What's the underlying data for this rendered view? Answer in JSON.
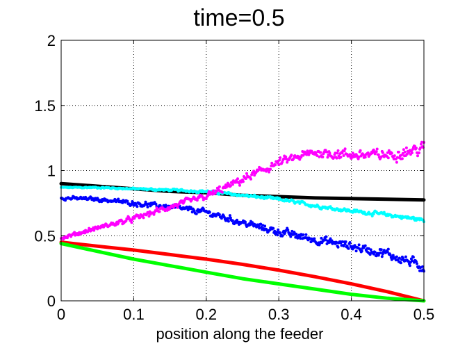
{
  "chart_data": {
    "type": "scatter",
    "title": "time=0.5",
    "xlabel": "position along the feeder",
    "ylabel": "",
    "xlim": [
      0,
      0.5
    ],
    "ylim": [
      0,
      2
    ],
    "x_ticks": [
      "0",
      "0.1",
      "0.2",
      "0.3",
      "0.4",
      "0.5"
    ],
    "y_ticks": [
      "0",
      "0.5",
      "1",
      "1.5",
      "2"
    ],
    "grid": true,
    "grid_style": "dotted",
    "series": [
      {
        "color": "#000000",
        "marker": "thick-line",
        "x": [
          0,
          0.05,
          0.1,
          0.15,
          0.2,
          0.25,
          0.3,
          0.35,
          0.4,
          0.45,
          0.5
        ],
        "y": [
          0.9,
          0.88,
          0.86,
          0.84,
          0.83,
          0.81,
          0.8,
          0.79,
          0.785,
          0.78,
          0.775
        ]
      },
      {
        "color": "#00ffff",
        "marker": "dots",
        "x": [
          0,
          0.05,
          0.1,
          0.15,
          0.2,
          0.25,
          0.3,
          0.35,
          0.4,
          0.45,
          0.5
        ],
        "y": [
          0.87,
          0.87,
          0.86,
          0.85,
          0.84,
          0.81,
          0.78,
          0.73,
          0.69,
          0.66,
          0.62
        ]
      },
      {
        "color": "#0000ff",
        "marker": "dots",
        "x": [
          0,
          0.05,
          0.1,
          0.15,
          0.2,
          0.25,
          0.3,
          0.35,
          0.4,
          0.45,
          0.5
        ],
        "y": [
          0.79,
          0.78,
          0.75,
          0.72,
          0.68,
          0.6,
          0.53,
          0.47,
          0.42,
          0.36,
          0.26
        ]
      },
      {
        "color": "#ff00ff",
        "marker": "dots",
        "x": [
          0,
          0.05,
          0.1,
          0.15,
          0.2,
          0.25,
          0.3,
          0.35,
          0.4,
          0.45,
          0.5
        ],
        "y": [
          0.48,
          0.56,
          0.63,
          0.72,
          0.8,
          0.93,
          1.06,
          1.14,
          1.12,
          1.12,
          1.17
        ]
      },
      {
        "color": "#ff0000",
        "marker": "thick-line",
        "x": [
          0,
          0.05,
          0.1,
          0.15,
          0.2,
          0.25,
          0.3,
          0.35,
          0.4,
          0.45,
          0.5
        ],
        "y": [
          0.45,
          0.42,
          0.39,
          0.355,
          0.32,
          0.28,
          0.235,
          0.185,
          0.13,
          0.07,
          0.0
        ]
      },
      {
        "color": "#00ff00",
        "marker": "thick-line",
        "x": [
          0,
          0.05,
          0.1,
          0.15,
          0.2,
          0.25,
          0.3,
          0.35,
          0.4,
          0.45,
          0.5
        ],
        "y": [
          0.44,
          0.38,
          0.32,
          0.27,
          0.22,
          0.17,
          0.13,
          0.09,
          0.05,
          0.02,
          0.0
        ]
      }
    ]
  }
}
